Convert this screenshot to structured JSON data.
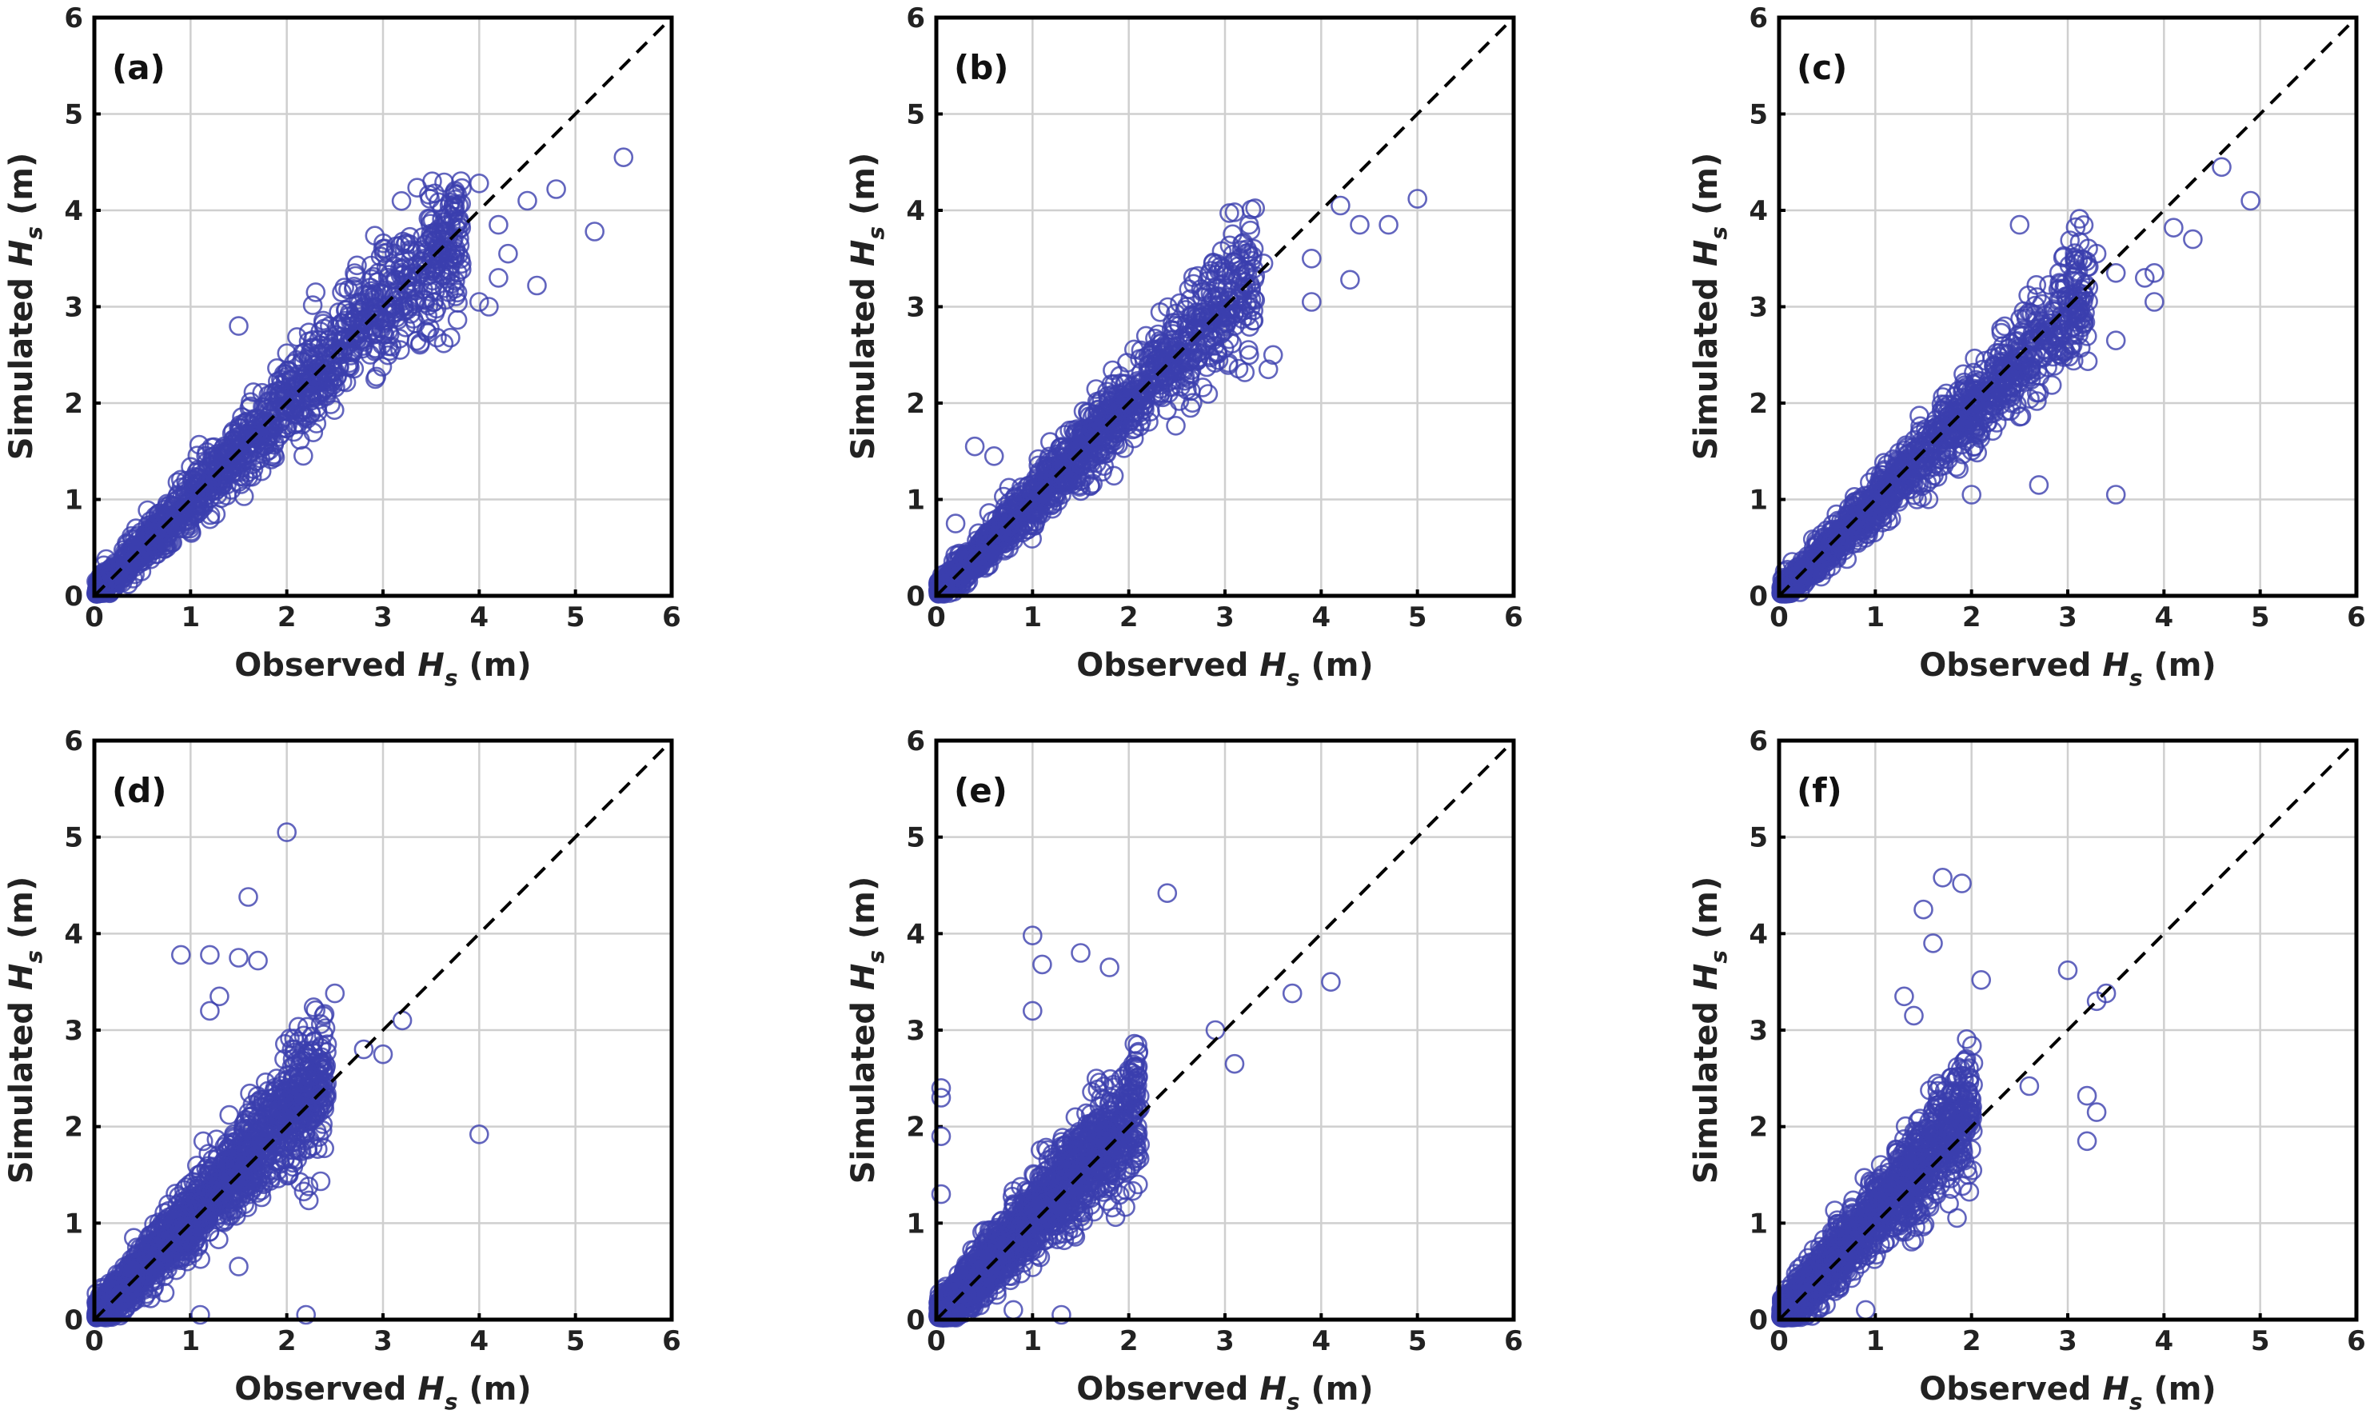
{
  "figure": {
    "marker_color": "#3b3fae",
    "reference_line": "1:1 dashed (y = x)",
    "panels": [
      {
        "id": "a",
        "label": "(a)"
      },
      {
        "id": "b",
        "label": "(b)"
      },
      {
        "id": "c",
        "label": "(c)"
      },
      {
        "id": "d",
        "label": "(d)"
      },
      {
        "id": "e",
        "label": "(e)"
      },
      {
        "id": "f",
        "label": "(f)"
      }
    ]
  },
  "chart_data": [
    {
      "type": "scatter",
      "panel": "(a)",
      "xlabel": "Observed",
      "ylabel": "Simulated",
      "symbol": "H",
      "subscript": "s",
      "unit": "(m)",
      "xlim": [
        0,
        6
      ],
      "ylim": [
        0,
        6
      ],
      "xticks": [
        0,
        1,
        2,
        3,
        4,
        5,
        6
      ],
      "yticks": [
        0,
        1,
        2,
        3,
        4,
        5,
        6
      ],
      "grid": true,
      "cloud": {
        "n": 1400,
        "max": 3.8,
        "slope": 1.0,
        "spread": 0.18,
        "seed": 11
      },
      "outliers": [
        [
          5.5,
          4.55
        ],
        [
          5.2,
          3.78
        ],
        [
          4.8,
          4.22
        ],
        [
          4.6,
          3.22
        ],
        [
          4.5,
          4.1
        ],
        [
          4.3,
          3.55
        ],
        [
          4.2,
          3.85
        ],
        [
          4.1,
          3.0
        ],
        [
          4.0,
          4.28
        ],
        [
          4.2,
          3.3
        ],
        [
          3.0,
          3.6
        ],
        [
          2.3,
          3.15
        ],
        [
          1.5,
          2.8
        ],
        [
          4.0,
          3.05
        ]
      ]
    },
    {
      "type": "scatter",
      "panel": "(b)",
      "xlabel": "Observed",
      "ylabel": "Simulated",
      "symbol": "H",
      "subscript": "s",
      "unit": "(m)",
      "xlim": [
        0,
        6
      ],
      "ylim": [
        0,
        6
      ],
      "xticks": [
        0,
        1,
        2,
        3,
        4,
        5,
        6
      ],
      "yticks": [
        0,
        1,
        2,
        3,
        4,
        5,
        6
      ],
      "grid": true,
      "cloud": {
        "n": 1400,
        "max": 3.3,
        "slope": 1.0,
        "spread": 0.17,
        "seed": 23
      },
      "outliers": [
        [
          5.0,
          4.12
        ],
        [
          4.7,
          3.85
        ],
        [
          4.4,
          3.85
        ],
        [
          4.2,
          4.05
        ],
        [
          4.3,
          3.28
        ],
        [
          3.9,
          3.5
        ],
        [
          3.9,
          3.05
        ],
        [
          3.3,
          3.6
        ],
        [
          3.1,
          3.98
        ],
        [
          3.4,
          3.45
        ],
        [
          3.5,
          2.5
        ],
        [
          3.45,
          2.35
        ],
        [
          0.2,
          0.75
        ],
        [
          0.4,
          1.55
        ],
        [
          0.6,
          1.45
        ]
      ]
    },
    {
      "type": "scatter",
      "panel": "(c)",
      "xlabel": "Observed",
      "ylabel": "Simulated",
      "symbol": "H",
      "subscript": "s",
      "unit": "(m)",
      "xlim": [
        0,
        6
      ],
      "ylim": [
        0,
        6
      ],
      "xticks": [
        0,
        1,
        2,
        3,
        4,
        5,
        6
      ],
      "yticks": [
        0,
        1,
        2,
        3,
        4,
        5,
        6
      ],
      "grid": true,
      "cloud": {
        "n": 1300,
        "max": 3.2,
        "slope": 0.97,
        "spread": 0.16,
        "seed": 37
      },
      "outliers": [
        [
          4.6,
          4.45
        ],
        [
          4.9,
          4.1
        ],
        [
          4.3,
          3.7
        ],
        [
          4.1,
          3.82
        ],
        [
          3.9,
          3.35
        ],
        [
          3.9,
          3.05
        ],
        [
          3.8,
          3.3
        ],
        [
          3.5,
          3.35
        ],
        [
          3.5,
          2.65
        ],
        [
          3.3,
          3.55
        ],
        [
          2.5,
          3.85
        ],
        [
          3.5,
          1.05
        ],
        [
          2.7,
          1.15
        ],
        [
          2.0,
          1.05
        ]
      ]
    },
    {
      "type": "scatter",
      "panel": "(d)",
      "xlabel": "Observed",
      "ylabel": "Simulated",
      "symbol": "H",
      "subscript": "s",
      "unit": "(m)",
      "xlim": [
        0,
        6
      ],
      "ylim": [
        0,
        6
      ],
      "xticks": [
        0,
        1,
        2,
        3,
        4,
        5,
        6
      ],
      "yticks": [
        0,
        1,
        2,
        3,
        4,
        5,
        6
      ],
      "grid": true,
      "cloud": {
        "n": 1700,
        "max": 2.4,
        "slope": 1.05,
        "spread": 0.22,
        "seed": 41
      },
      "outliers": [
        [
          2.0,
          5.05
        ],
        [
          1.6,
          4.38
        ],
        [
          0.9,
          3.78
        ],
        [
          1.2,
          3.78
        ],
        [
          1.5,
          3.75
        ],
        [
          1.7,
          3.72
        ],
        [
          1.3,
          3.35
        ],
        [
          1.2,
          3.2
        ],
        [
          2.5,
          3.38
        ],
        [
          3.2,
          3.1
        ],
        [
          2.8,
          2.8
        ],
        [
          3.0,
          2.75
        ],
        [
          4.0,
          1.92
        ],
        [
          2.2,
          0.05
        ],
        [
          1.1,
          0.05
        ],
        [
          1.5,
          0.55
        ]
      ]
    },
    {
      "type": "scatter",
      "panel": "(e)",
      "xlabel": "Observed",
      "ylabel": "Simulated",
      "symbol": "H",
      "subscript": "s",
      "unit": "(m)",
      "xlim": [
        0,
        6
      ],
      "ylim": [
        0,
        6
      ],
      "xticks": [
        0,
        1,
        2,
        3,
        4,
        5,
        6
      ],
      "yticks": [
        0,
        1,
        2,
        3,
        4,
        5,
        6
      ],
      "grid": true,
      "cloud": {
        "n": 1700,
        "max": 2.1,
        "slope": 1.05,
        "spread": 0.25,
        "seed": 53
      },
      "outliers": [
        [
          2.4,
          4.42
        ],
        [
          1.0,
          3.98
        ],
        [
          1.1,
          3.68
        ],
        [
          1.5,
          3.8
        ],
        [
          1.8,
          3.65
        ],
        [
          1.0,
          3.2
        ],
        [
          3.7,
          3.38
        ],
        [
          4.1,
          3.5
        ],
        [
          2.9,
          3.0
        ],
        [
          3.1,
          2.65
        ],
        [
          0.05,
          2.4
        ],
        [
          0.05,
          2.3
        ],
        [
          0.05,
          1.9
        ],
        [
          0.05,
          1.3
        ],
        [
          0.8,
          0.1
        ],
        [
          1.3,
          0.05
        ]
      ]
    },
    {
      "type": "scatter",
      "panel": "(f)",
      "xlabel": "Observed",
      "ylabel": "Simulated",
      "symbol": "H",
      "subscript": "s",
      "unit": "(m)",
      "xlim": [
        0,
        6
      ],
      "ylim": [
        0,
        6
      ],
      "xticks": [
        0,
        1,
        2,
        3,
        4,
        5,
        6
      ],
      "yticks": [
        0,
        1,
        2,
        3,
        4,
        5,
        6
      ],
      "grid": true,
      "cloud": {
        "n": 1500,
        "max": 2.0,
        "slope": 1.08,
        "spread": 0.24,
        "seed": 67
      },
      "outliers": [
        [
          1.7,
          4.58
        ],
        [
          1.9,
          4.52
        ],
        [
          1.5,
          4.25
        ],
        [
          1.6,
          3.9
        ],
        [
          3.0,
          3.62
        ],
        [
          3.4,
          3.38
        ],
        [
          3.3,
          3.3
        ],
        [
          2.1,
          3.52
        ],
        [
          1.3,
          3.35
        ],
        [
          1.4,
          3.15
        ],
        [
          3.2,
          2.32
        ],
        [
          3.3,
          2.15
        ],
        [
          3.2,
          1.85
        ],
        [
          2.6,
          2.42
        ],
        [
          0.9,
          0.1
        ]
      ]
    }
  ]
}
